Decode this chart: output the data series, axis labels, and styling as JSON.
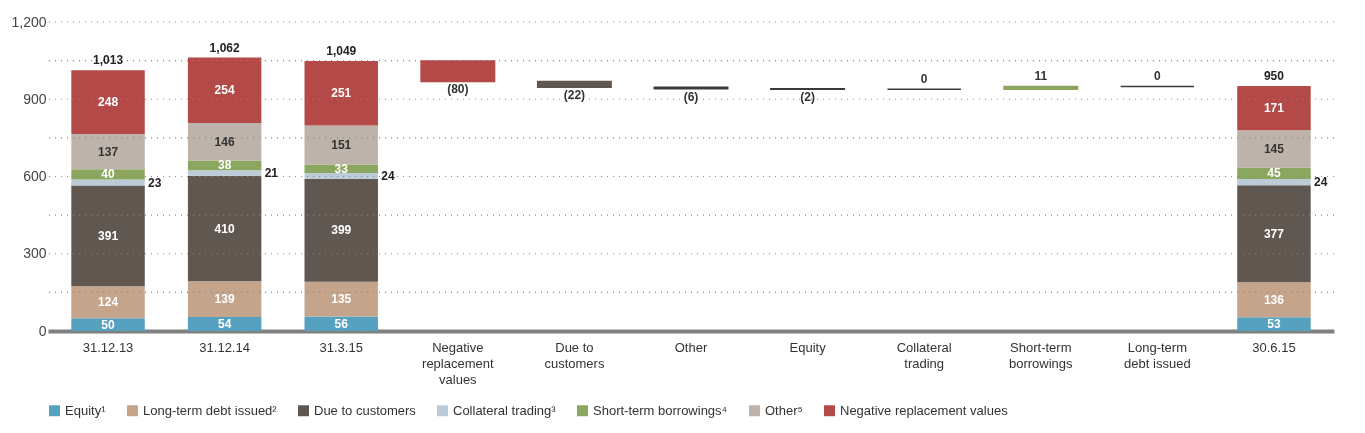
{
  "chart_data": {
    "type": "bar",
    "stacked": true,
    "categories": [
      "31.12.13",
      "31.12.14",
      "31.3.15",
      "Negative\nreplacement\nvalues",
      "Due to\ncustomers",
      "Other",
      "Equity",
      "Collateral\ntrading",
      "Short-term\nborrowings",
      "Long-term\ndebt issued",
      "30.6.15"
    ],
    "series": [
      {
        "name": "Equity¹",
        "color": "#56a0c0",
        "values": [
          50,
          54,
          56,
          null,
          null,
          null,
          -2,
          null,
          null,
          null,
          53
        ],
        "base": [
          null,
          null,
          null,
          null,
          null,
          null,
          941,
          null,
          null,
          null,
          null
        ],
        "colors": [
          null,
          null,
          null,
          null,
          null,
          null,
          "#3d3a38",
          null,
          null,
          null,
          null
        ],
        "value_labels": [
          "50",
          "54",
          "56",
          null,
          null,
          null,
          "(2)",
          null,
          null,
          null,
          "53"
        ]
      },
      {
        "name": "Long-term debt issued²",
        "color": "#c4a58c",
        "values": [
          124,
          139,
          135,
          null,
          null,
          null,
          null,
          null,
          null,
          0,
          136
        ],
        "base": [
          null,
          null,
          null,
          null,
          null,
          null,
          null,
          null,
          null,
          950,
          null
        ],
        "colors": [
          null,
          null,
          null,
          null,
          null,
          null,
          null,
          null,
          null,
          "#3d3a38",
          null
        ],
        "value_labels": [
          "124",
          "139",
          "135",
          null,
          null,
          null,
          null,
          null,
          null,
          "0",
          "136"
        ]
      },
      {
        "name": "Due to customers",
        "color": "#5f5750",
        "values": [
          391,
          410,
          399,
          null,
          -22,
          null,
          null,
          null,
          null,
          null,
          377
        ],
        "base": [
          null,
          null,
          null,
          null,
          969,
          null,
          null,
          null,
          null,
          null,
          null
        ],
        "value_labels": [
          "391",
          "410",
          "399",
          null,
          "(22)",
          null,
          null,
          null,
          null,
          null,
          "377"
        ]
      },
      {
        "name": "Collateral trading³",
        "color": "#bccbd6",
        "values": [
          23,
          21,
          24,
          null,
          null,
          null,
          null,
          0,
          null,
          null,
          24
        ],
        "base": [
          null,
          null,
          null,
          null,
          null,
          null,
          null,
          939,
          null,
          null,
          null
        ],
        "colors": [
          null,
          null,
          null,
          null,
          null,
          null,
          null,
          "#3d3a38",
          null,
          null,
          null
        ],
        "value_labels": [
          "23",
          "21",
          "24",
          null,
          null,
          null,
          null,
          "0",
          null,
          null,
          "24"
        ]
      },
      {
        "name": "Short-term borrowings⁴",
        "color": "#8ba65e",
        "values": [
          40,
          38,
          33,
          null,
          null,
          null,
          null,
          null,
          11,
          null,
          45
        ],
        "base": [
          null,
          null,
          null,
          null,
          null,
          null,
          null,
          null,
          939,
          null,
          null
        ],
        "value_labels": [
          "40",
          "38",
          "33",
          null,
          null,
          null,
          null,
          null,
          "11",
          null,
          "45"
        ]
      },
      {
        "name": "Other⁵",
        "color": "#bdb3aa",
        "values": [
          137,
          146,
          151,
          null,
          null,
          -6,
          null,
          null,
          null,
          null,
          145
        ],
        "base": [
          null,
          null,
          null,
          null,
          null,
          947,
          null,
          null,
          null,
          null,
          null
        ],
        "colors": [
          null,
          null,
          null,
          null,
          null,
          "#3d3a38",
          null,
          null,
          null,
          null,
          null
        ],
        "value_labels": [
          "137",
          "146",
          "151",
          null,
          null,
          "(6)",
          null,
          null,
          null,
          null,
          "145"
        ]
      },
      {
        "name": "Negative replacement values",
        "color": "#b34a48",
        "values": [
          248,
          254,
          251,
          -80,
          null,
          null,
          null,
          null,
          null,
          null,
          171
        ],
        "base": [
          null,
          null,
          null,
          1049,
          null,
          null,
          null,
          null,
          null,
          null,
          null
        ],
        "value_labels": [
          "248",
          "254",
          "251",
          "(80)",
          null,
          null,
          null,
          null,
          null,
          null,
          "171"
        ]
      }
    ],
    "totals": [
      "1,013",
      "1,062",
      "1,049",
      null,
      null,
      null,
      null,
      null,
      null,
      null,
      "950"
    ],
    "ylim": [
      0,
      1200
    ],
    "yticks": [
      0,
      {
        "value": 150,
        "label": null
      },
      300,
      {
        "value": 450,
        "label": null
      },
      600,
      {
        "value": 750,
        "label": null
      },
      900,
      {
        "value": 1050,
        "label": null
      },
      {
        "value": 1200,
        "label": "1,200"
      }
    ],
    "grid": "y",
    "legend": "bottom"
  }
}
